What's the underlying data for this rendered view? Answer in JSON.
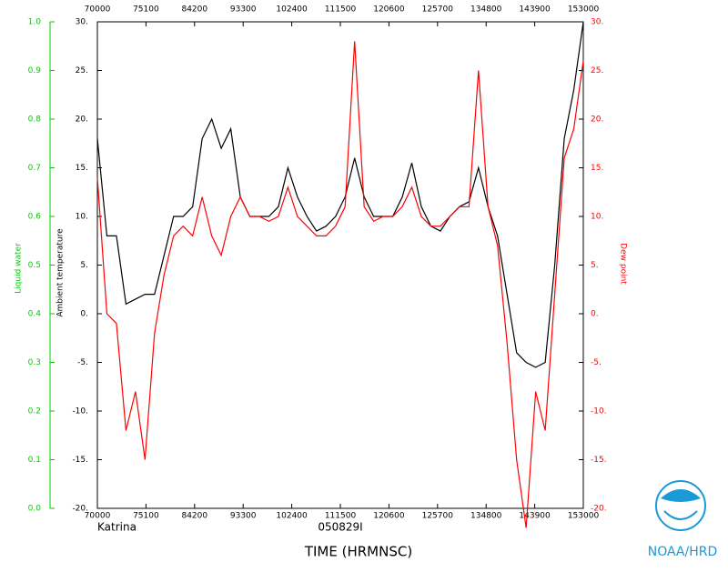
{
  "chart_data": {
    "type": "line",
    "ylabel": "Ambient temperature",
    "y2label": "Dew point",
    "y3label": "Liquid water",
    "xlabel": "TIME (HRMNSC)",
    "storm": "Katrina",
    "flight": "050829I",
    "agency": "NOAA/HRD",
    "xlim": [
      70000,
      153000
    ],
    "xticks": [
      70000,
      75100,
      84200,
      93300,
      102400,
      111500,
      120600,
      125700,
      134800,
      143900,
      153000
    ],
    "ylim": [
      -20,
      30
    ],
    "yticks": [
      {
        "value": -20,
        "label": "-20."
      },
      {
        "value": -15,
        "label": "-15."
      },
      {
        "value": -10,
        "label": "-10."
      },
      {
        "value": -5,
        "label": "-5."
      },
      {
        "value": 0,
        "label": "0."
      },
      {
        "value": 5,
        "label": "5."
      },
      {
        "value": 10,
        "label": "10."
      },
      {
        "value": 15,
        "label": "15."
      },
      {
        "value": 20,
        "label": "20."
      },
      {
        "value": 25,
        "label": "25."
      },
      {
        "value": 30,
        "label": "30."
      }
    ],
    "y2lim": [
      -20,
      30
    ],
    "y2ticks": [
      {
        "value": -20,
        "label": "-20."
      },
      {
        "value": -15,
        "label": "-15."
      },
      {
        "value": -10,
        "label": "-10."
      },
      {
        "value": -5,
        "label": "-5."
      },
      {
        "value": 0,
        "label": "0."
      },
      {
        "value": 5,
        "label": "5."
      },
      {
        "value": 10,
        "label": "10."
      },
      {
        "value": 15,
        "label": "15."
      },
      {
        "value": 20,
        "label": "20."
      },
      {
        "value": 25,
        "label": "25."
      },
      {
        "value": 30,
        "label": "30."
      }
    ],
    "y3lim": [
      0,
      1
    ],
    "y3ticks": [
      {
        "value": 0,
        "label": "0.0"
      },
      0.1,
      0.2,
      0.3,
      0.4,
      0.5,
      0.6,
      0.7,
      0.8,
      0.9,
      {
        "value": 1,
        "label": "1.0"
      }
    ],
    "x": [
      70000,
      71000,
      72000,
      73000,
      74000,
      75000,
      80000,
      81000,
      82000,
      83000,
      84000,
      85000,
      90000,
      91000,
      92000,
      93000,
      94000,
      95000,
      100000,
      101000,
      102000,
      103000,
      104000,
      105000,
      110000,
      111000,
      112000,
      113000,
      114000,
      115000,
      120000,
      121000,
      122000,
      123000,
      124000,
      125000,
      130000,
      131000,
      132000,
      133000,
      134000,
      135000,
      140000,
      141000,
      142000,
      143000,
      144000,
      145000,
      150000,
      151000,
      152000,
      153000
    ],
    "series": [
      {
        "name": "Ambient temperature",
        "color": "#000000",
        "values": [
          18,
          8,
          8,
          1,
          1.5,
          2,
          2,
          6,
          10,
          10,
          11,
          18,
          20,
          17,
          19,
          12,
          10,
          10,
          10,
          11,
          15,
          12,
          10,
          8.5,
          9,
          10,
          12,
          16,
          12,
          10,
          10,
          10,
          12,
          15.5,
          11,
          9,
          8.5,
          10,
          11,
          11.5,
          15,
          11,
          8,
          2,
          -4,
          -5,
          -5.5,
          -5,
          5,
          18,
          23,
          30
        ]
      },
      {
        "name": "Dew point",
        "color": "#ff0000",
        "axis": "y2",
        "values": [
          14,
          0,
          -1,
          -12,
          -8,
          -15,
          -2,
          4,
          8,
          9,
          8,
          12,
          8,
          6,
          10,
          12,
          10,
          10,
          9.5,
          10,
          13,
          10,
          9,
          8,
          8,
          9,
          11,
          28,
          11,
          9.5,
          10,
          10,
          11,
          13,
          10,
          9,
          9,
          10,
          11,
          11,
          25,
          11,
          7,
          -3,
          -15,
          -22,
          -8,
          -12,
          2,
          16,
          19,
          26
        ]
      }
    ]
  }
}
